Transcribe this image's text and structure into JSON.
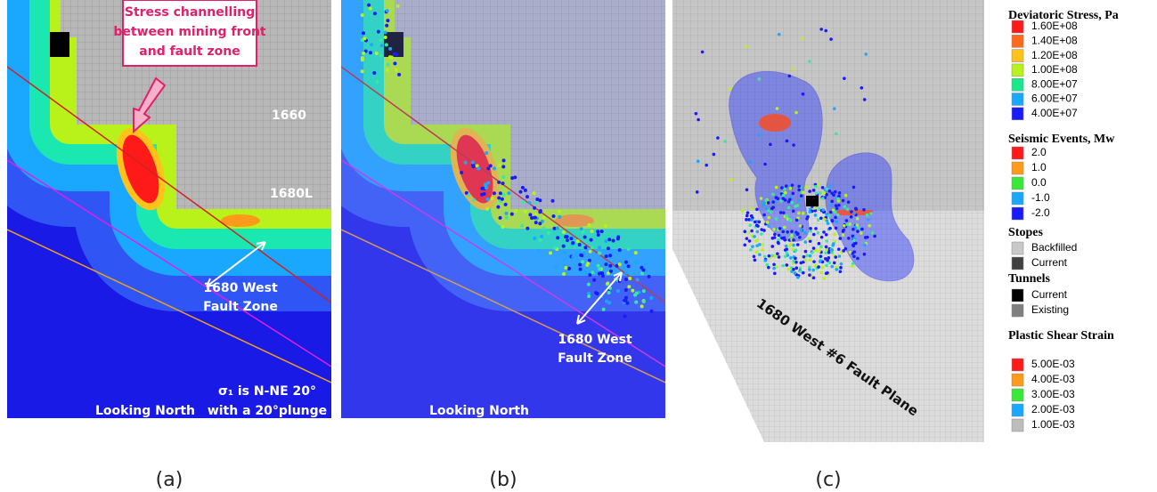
{
  "panels": [
    {
      "caption": "(a)",
      "callout": [
        "Stress channelling",
        "between mining front",
        "and fault zone"
      ],
      "level_labels": [
        "1660",
        "1680L"
      ],
      "fault_label": [
        "1680 West",
        "Fault Zone"
      ],
      "view_label": "Looking North",
      "stress_note": [
        "σ₁ is N-NE 20°",
        "with a 20°plunge"
      ]
    },
    {
      "caption": "(b)",
      "fault_label": [
        "1680 West",
        "Fault Zone"
      ],
      "view_label": "Looking North"
    },
    {
      "caption": "(c)",
      "plane_label": "1680 West #6 Fault Plane"
    }
  ],
  "legend": [
    {
      "title": "Deviatoric Stress, Pa",
      "items": [
        {
          "label": "1.60E+08",
          "color": "#ff1a1a"
        },
        {
          "label": "1.40E+08",
          "color": "#ff6a1a"
        },
        {
          "label": "1.20E+08",
          "color": "#ffc21a"
        },
        {
          "label": "1.00E+08",
          "color": "#b8f21a"
        },
        {
          "label": "8.00E+07",
          "color": "#1ae88a"
        },
        {
          "label": "6.00E+07",
          "color": "#1aa8ff"
        },
        {
          "label": "4.00E+07",
          "color": "#1a1aff"
        }
      ]
    },
    {
      "title": "Seismic Events, Mw",
      "items": [
        {
          "label": "2.0",
          "color": "#ff1a1a"
        },
        {
          "label": "1.0",
          "color": "#ff9a1a"
        },
        {
          "label": "0.0",
          "color": "#3ae83a"
        },
        {
          "label": "-1.0",
          "color": "#1aa8ff"
        },
        {
          "label": "-2.0",
          "color": "#1a1aff"
        }
      ]
    },
    {
      "title": "Stopes",
      "items": [
        {
          "label": "Backfilled",
          "color": "#c8c8c8"
        },
        {
          "label": "Current",
          "color": "#404040"
        }
      ]
    },
    {
      "title": "Tunnels",
      "items": [
        {
          "label": "Current",
          "color": "#000000"
        },
        {
          "label": "Existing",
          "color": "#808080"
        }
      ]
    },
    {
      "title": "Plastic Shear Strain",
      "items": [
        {
          "label": "5.00E-03",
          "color": "#ff1a1a"
        },
        {
          "label": "4.00E-03",
          "color": "#ff9a1a"
        },
        {
          "label": "3.00E-03",
          "color": "#3ae83a"
        },
        {
          "label": "2.00E-03",
          "color": "#1aa8ff"
        },
        {
          "label": "1.00E-03",
          "color": "#bdbdbd"
        }
      ]
    }
  ]
}
